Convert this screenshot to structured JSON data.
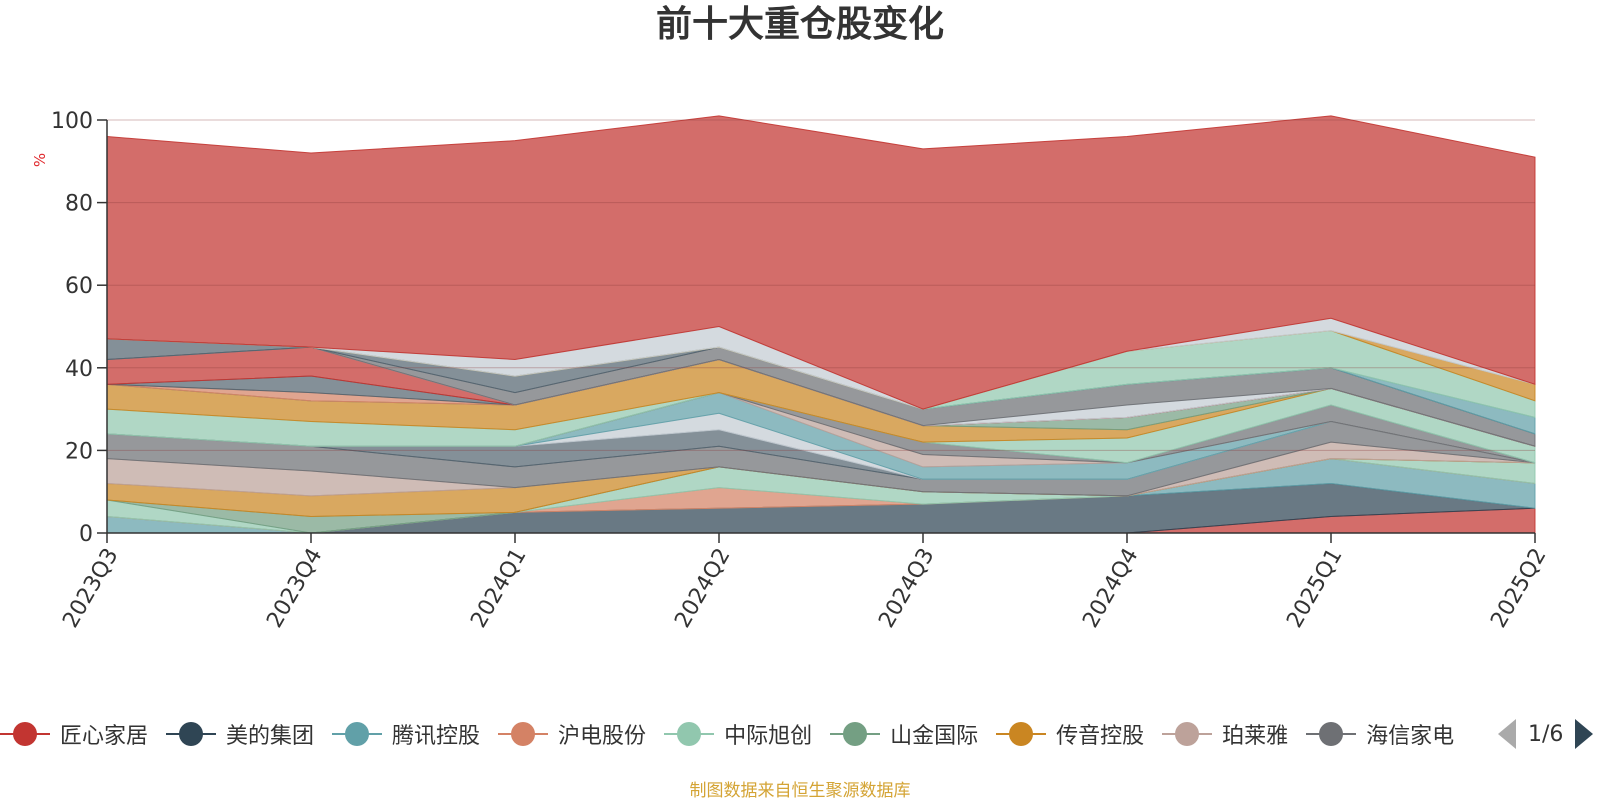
{
  "chart_data": {
    "type": "area",
    "title": "前十大重仓股变化",
    "ylabel": "%",
    "ylim": [
      0,
      100
    ],
    "yticks": [
      0,
      20,
      40,
      60,
      80,
      100
    ],
    "categories": [
      "2023Q3",
      "2023Q4",
      "2024Q1",
      "2024Q2",
      "2024Q3",
      "2024Q4",
      "2025Q1",
      "2025Q2"
    ],
    "series": [
      {
        "name": "匠心家居",
        "color": "#c23531",
        "values": [
          0,
          0,
          0,
          0,
          0,
          0,
          4,
          6
        ]
      },
      {
        "name": "美的集团",
        "color": "#2f4554",
        "values": [
          0,
          0,
          5,
          6,
          7,
          9,
          8,
          0
        ]
      },
      {
        "name": "腾讯控股",
        "color": "#61a0a8",
        "values": [
          4,
          0,
          0,
          0,
          0,
          0,
          6,
          6
        ]
      },
      {
        "name": "沪电股份",
        "color": "#d48265",
        "values": [
          0,
          0,
          0,
          5,
          0,
          0,
          0,
          0
        ]
      },
      {
        "name": "中际旭创",
        "color": "#91c7ae",
        "values": [
          4,
          0,
          0,
          5,
          3,
          0,
          0,
          5
        ]
      },
      {
        "name": "山金国际",
        "color": "#749f83",
        "values": [
          0,
          4,
          0,
          0,
          0,
          0,
          0,
          0
        ]
      },
      {
        "name": "传音控股",
        "color": "#ca8622",
        "values": [
          4,
          5,
          6,
          0,
          0,
          0,
          0,
          0
        ]
      },
      {
        "name": "珀莱雅",
        "color": "#bda29a",
        "values": [
          6,
          6,
          0,
          0,
          0,
          0,
          4,
          0
        ]
      },
      {
        "name": "海信家电",
        "color": "#6e7074",
        "values": [
          6,
          6,
          5,
          5,
          3,
          4,
          5,
          0
        ]
      },
      {
        "name": "",
        "color": "#546570",
        "values": [
          0,
          0,
          5,
          4,
          0,
          0,
          0,
          0
        ]
      },
      {
        "name": "",
        "color": "#c4ccd3",
        "values": [
          0,
          0,
          0,
          4,
          0,
          0,
          0,
          0
        ]
      },
      {
        "name": "",
        "color": "#61a0a8",
        "values": [
          0,
          0,
          0,
          5,
          3,
          4,
          0,
          0
        ]
      },
      {
        "name": "",
        "color": "#bda29a",
        "values": [
          0,
          0,
          0,
          0,
          3,
          0,
          0,
          0
        ]
      },
      {
        "name": "",
        "color": "#6e7074",
        "values": [
          0,
          0,
          0,
          0,
          3,
          0,
          4,
          0
        ]
      },
      {
        "name": "",
        "color": "#91c7ae",
        "values": [
          6,
          6,
          4,
          0,
          0,
          6,
          4,
          4
        ]
      },
      {
        "name": "",
        "color": "#ca8622",
        "values": [
          6,
          5,
          6,
          8,
          4,
          2,
          0,
          0
        ]
      },
      {
        "name": "",
        "color": "#749f83",
        "values": [
          0,
          0,
          0,
          0,
          0,
          3,
          0,
          0
        ]
      },
      {
        "name": "",
        "color": "#d48265",
        "values": [
          0,
          2,
          0,
          0,
          0,
          0,
          0,
          0
        ]
      },
      {
        "name": "",
        "color": "#546570",
        "values": [
          0,
          4,
          0,
          0,
          0,
          0,
          0,
          0
        ]
      },
      {
        "name": "",
        "color": "#c23531",
        "values": [
          6,
          7,
          0,
          0,
          0,
          0,
          0,
          0
        ]
      },
      {
        "name": "",
        "color": "#c4ccd3",
        "values": [
          0,
          0,
          0,
          0,
          0,
          3,
          0,
          0
        ]
      },
      {
        "name": "",
        "color": "#6e7074",
        "values": [
          0,
          0,
          3,
          3,
          4,
          5,
          5,
          3
        ]
      },
      {
        "name": "",
        "color": "#546570",
        "values": [
          5,
          0,
          4,
          0,
          0,
          0,
          0,
          0
        ]
      },
      {
        "name": "",
        "color": "#61a0a8",
        "values": [
          0,
          0,
          0,
          0,
          0,
          0,
          0,
          4
        ]
      },
      {
        "name": "",
        "color": "#91c7ae",
        "values": [
          0,
          0,
          0,
          0,
          0,
          8,
          9,
          4
        ]
      },
      {
        "name": "",
        "color": "#ca8622",
        "values": [
          0,
          0,
          0,
          0,
          0,
          0,
          0,
          4
        ]
      },
      {
        "name": "",
        "color": "#c4ccd3",
        "values": [
          0,
          0,
          4,
          5,
          0,
          0,
          3,
          0
        ]
      },
      {
        "name": "",
        "color": "#c23531",
        "values": [
          49,
          47,
          53,
          51,
          63,
          52,
          49,
          55
        ]
      }
    ]
  },
  "legend": {
    "items": [
      {
        "name": "匠心家居",
        "color": "#c23531"
      },
      {
        "name": "美的集团",
        "color": "#2f4554"
      },
      {
        "name": "腾讯控股",
        "color": "#61a0a8"
      },
      {
        "name": "沪电股份",
        "color": "#d48265"
      },
      {
        "name": "中际旭创",
        "color": "#91c7ae"
      },
      {
        "name": "山金国际",
        "color": "#749f83"
      },
      {
        "name": "传音控股",
        "color": "#ca8622"
      },
      {
        "name": "珀莱雅",
        "color": "#bda29a"
      },
      {
        "name": "海信家电",
        "color": "#6e7074"
      }
    ],
    "page": "1/6"
  },
  "source_note": "制图数据来自恒生聚源数据库"
}
